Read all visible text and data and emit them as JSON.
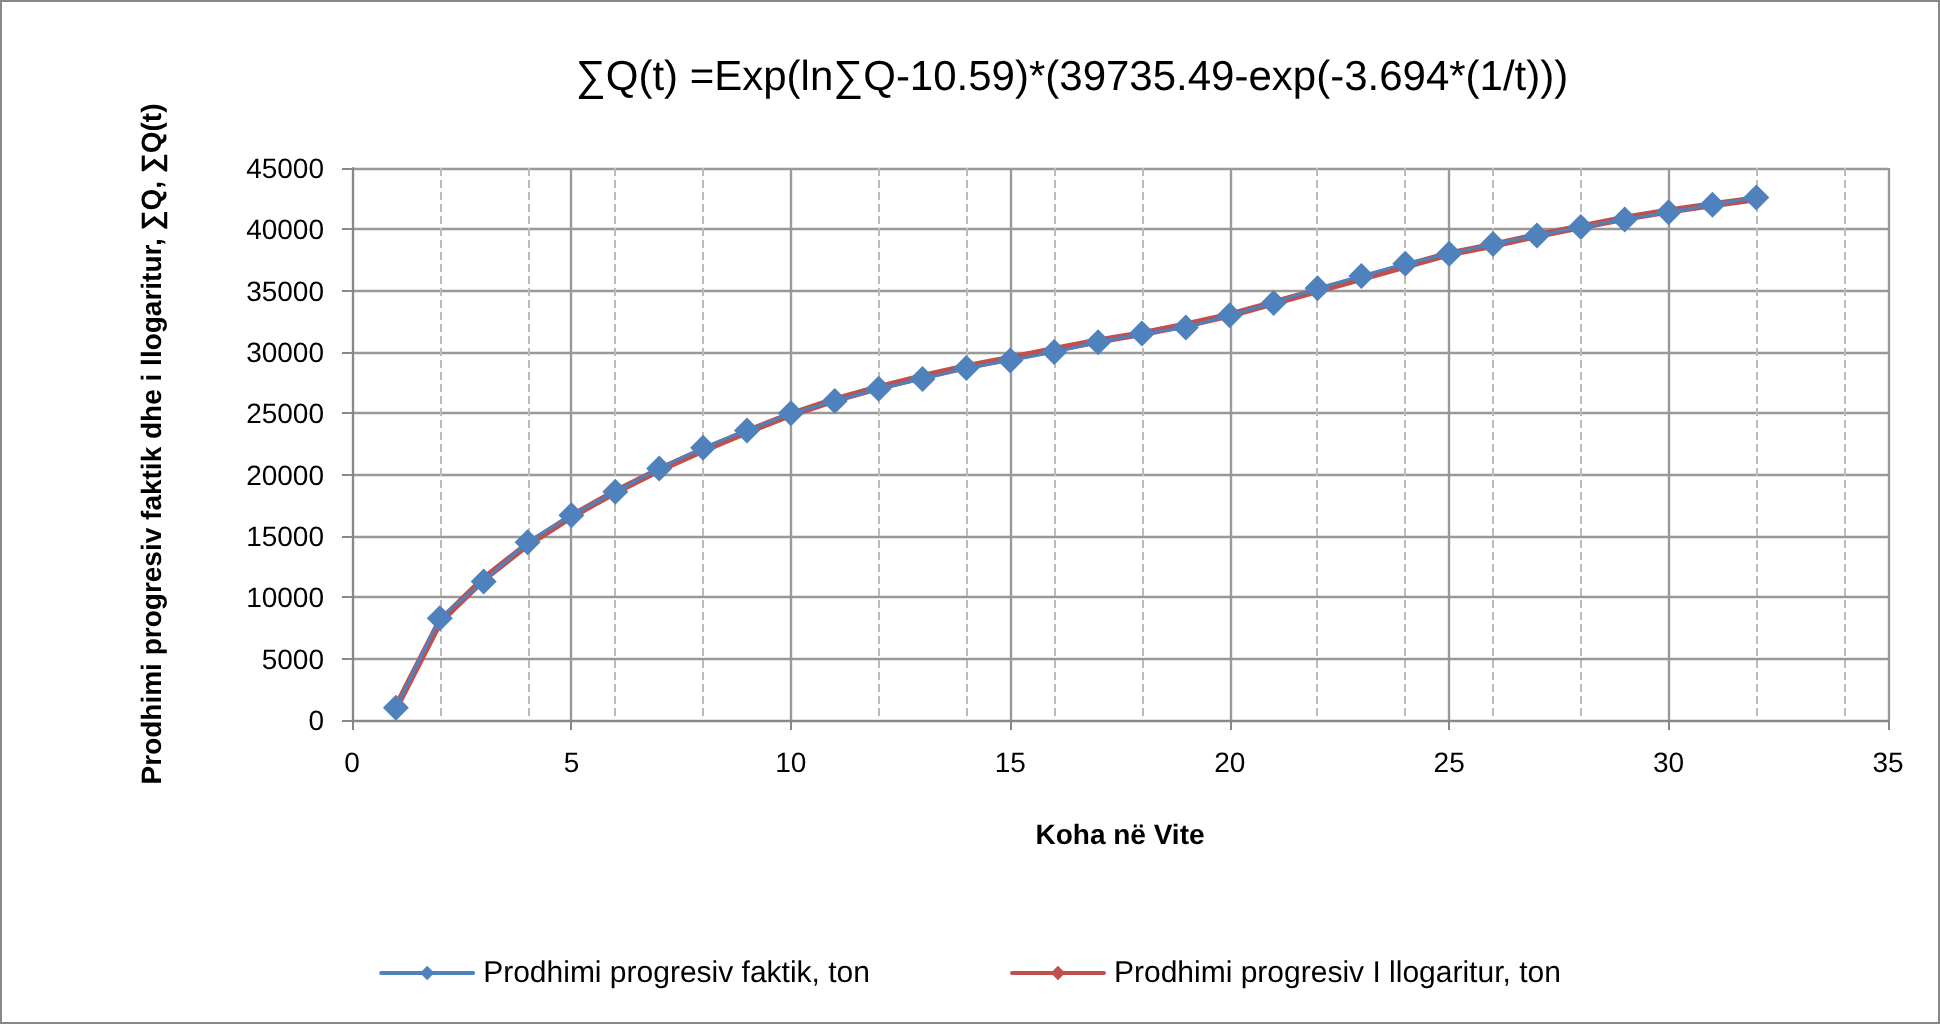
{
  "chart_data": {
    "type": "line",
    "title": "∑Q(t) =Exp(ln∑Q-10.59)*(39735.49-exp(-3.694*(1/t)))",
    "xlabel": "Koha në Vite",
    "ylabel": "Prodhimi progresiv faktik dhe i llogaritur, ∑Q, ∑Q(t)",
    "x": [
      1,
      2,
      3,
      4,
      5,
      6,
      7,
      8,
      9,
      10,
      11,
      12,
      13,
      14,
      15,
      16,
      17,
      18,
      19,
      20,
      21,
      22,
      23,
      24,
      25,
      26,
      27,
      28,
      29,
      30,
      31,
      32
    ],
    "series": [
      {
        "name": "Prodhimi progresiv faktik, ton",
        "color": "#4f81bd",
        "values": [
          1000,
          8300,
          11300,
          14500,
          16700,
          18600,
          20500,
          22200,
          23600,
          25000,
          26000,
          27000,
          27800,
          28700,
          29300,
          30000,
          30800,
          31500,
          32000,
          33000,
          34000,
          35200,
          36200,
          37200,
          38000,
          38800,
          39500,
          40200,
          40800,
          41400,
          42000,
          42600
        ]
      },
      {
        "name": "Prodhimi progresiv I llogaritur, ton",
        "color": "#c0504d",
        "values": [
          1000,
          8000,
          11500,
          14300,
          16600,
          18600,
          20400,
          22000,
          23500,
          24900,
          26100,
          27100,
          28000,
          28800,
          29500,
          30200,
          30900,
          31500,
          32200,
          33000,
          34000,
          35000,
          36000,
          37000,
          38000,
          38700,
          39500,
          40200,
          40900,
          41500,
          42000,
          42500
        ]
      }
    ],
    "xlim": [
      0,
      35
    ],
    "xticks": [
      0,
      5,
      10,
      15,
      20,
      25,
      30,
      35
    ],
    "ylim": [
      0,
      45000
    ],
    "yticks": [
      0,
      5000,
      10000,
      15000,
      20000,
      25000,
      30000,
      35000,
      40000,
      45000
    ],
    "grid": true,
    "legend": "bottom",
    "marker": "diamond",
    "line_style": "solid"
  }
}
